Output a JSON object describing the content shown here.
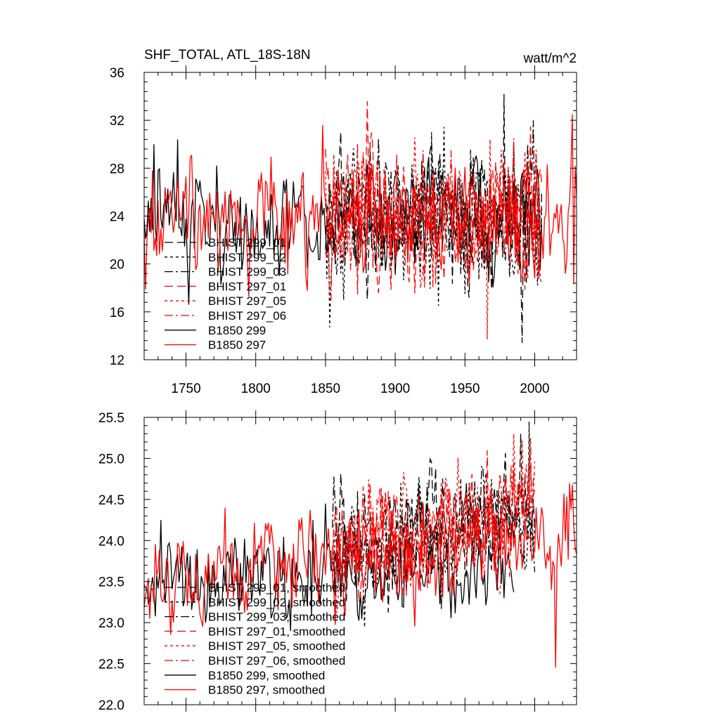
{
  "chart_data": [
    {
      "type": "line",
      "title": "SHF_TOTAL, ATL_18S-18N",
      "units": "watt/m^2",
      "xlim": [
        1720,
        2030
      ],
      "ylim": [
        12,
        36
      ],
      "x_ticks": [
        1750,
        1800,
        1850,
        1900,
        1950,
        2000
      ],
      "y_ticks": [
        12,
        16,
        20,
        24,
        28,
        32,
        36
      ],
      "legend": [
        "BHIST 299_01",
        "BHIST 299_02",
        "BHIST 299_03",
        "BHIST 297_01",
        "BHIST 297_05",
        "BHIST 297_06",
        "B1850 299",
        "B1850 297"
      ],
      "series": [
        {
          "name": "BHIST 299_01",
          "color": "#000000",
          "dash": "long",
          "x": [
            1850,
            2005
          ],
          "mean": 23.8,
          "amp": 4.0,
          "trend": 0.0,
          "spikes": [
            [
              1861,
              31.0
            ],
            [
              1978,
              34.2
            ],
            [
              1991,
              13.4
            ]
          ]
        },
        {
          "name": "BHIST 299_02",
          "color": "#000000",
          "dash": "short",
          "x": [
            1850,
            2005
          ],
          "mean": 23.8,
          "amp": 4.0,
          "trend": 0.0,
          "spikes": [
            [
              1853,
              14.7
            ],
            [
              1926,
              31.0
            ],
            [
              1931,
              16.5
            ]
          ]
        },
        {
          "name": "BHIST 299_03",
          "color": "#000000",
          "dash": "dashdot",
          "x": [
            1850,
            2005
          ],
          "mean": 23.8,
          "amp": 4.0,
          "trend": 0.0,
          "spikes": [
            [
              1888,
              30.5
            ],
            [
              1999,
              32.0
            ]
          ]
        },
        {
          "name": "BHIST 297_01",
          "color": "#ff0000",
          "dash": "long",
          "x": [
            1850,
            2005
          ],
          "mean": 24.0,
          "amp": 3.8,
          "trend": 0.0,
          "spikes": [
            [
              1880,
              33.6
            ],
            [
              1997,
              31.5
            ]
          ]
        },
        {
          "name": "BHIST 297_05",
          "color": "#ff0000",
          "dash": "short",
          "x": [
            1850,
            2005
          ],
          "mean": 24.0,
          "amp": 3.8,
          "trend": 0.0,
          "spikes": [
            [
              1966,
              13.7
            ],
            [
              1968,
              30.4
            ]
          ]
        },
        {
          "name": "BHIST 297_06",
          "color": "#ff0000",
          "dash": "dashdot",
          "x": [
            1850,
            2005
          ],
          "mean": 24.0,
          "amp": 3.8,
          "trend": 0.0,
          "spikes": [
            [
              1940,
              29.5
            ],
            [
              1985,
              30.5
            ]
          ]
        },
        {
          "name": "B1850 299",
          "color": "#000000",
          "dash": "solid",
          "x": [
            1720,
            2005
          ],
          "mean": 23.7,
          "amp": 3.2,
          "trend": 0.0,
          "spikes": [
            [
              1727,
              30.0
            ],
            [
              1744,
              30.4
            ],
            [
              1752,
              16.6
            ]
          ]
        },
        {
          "name": "B1850 297",
          "color": "#ff0000",
          "dash": "solid",
          "x": [
            1720,
            2030
          ],
          "mean": 23.9,
          "amp": 3.3,
          "trend": 0.0,
          "spikes": [
            [
              1726,
              27.8
            ],
            [
              1848,
              31.6
            ],
            [
              2027,
              32.5
            ],
            [
              2028,
              18.3
            ]
          ]
        }
      ]
    },
    {
      "type": "line",
      "title": "",
      "xlim": [
        1720,
        2030
      ],
      "ylim": [
        22.0,
        25.5
      ],
      "y_ticks": [
        22.0,
        22.5,
        23.0,
        23.5,
        24.0,
        24.5,
        25.0,
        25.5
      ],
      "legend": [
        "BHIST 299_01, smoothed",
        "BHIST 299_02, smoothed",
        "BHIST 299_03, smoothed",
        "BHIST 297_01, smoothed",
        "BHIST 297_05, smoothed",
        "BHIST 297_06, smoothed",
        "B1850 299, smoothed",
        "B1850 297, smoothed"
      ],
      "series": [
        {
          "name": "BHIST 299_01, smoothed",
          "color": "#000000",
          "dash": "long",
          "x": [
            1855,
            2000
          ],
          "mean": 23.85,
          "amp": 0.42,
          "trend": 0.0035,
          "spikes": [
            [
              1873,
              24.6
            ],
            [
              1990,
              25.3
            ]
          ]
        },
        {
          "name": "BHIST 299_02, smoothed",
          "color": "#000000",
          "dash": "short",
          "x": [
            1855,
            2000
          ],
          "mean": 23.85,
          "amp": 0.42,
          "trend": 0.0035,
          "spikes": [
            [
              1904,
              24.7
            ],
            [
              1996,
              25.45
            ]
          ]
        },
        {
          "name": "BHIST 299_03, smoothed",
          "color": "#000000",
          "dash": "dashdot",
          "x": [
            1855,
            2000
          ],
          "mean": 23.85,
          "amp": 0.42,
          "trend": 0.0035,
          "spikes": [
            [
              1923,
              24.7
            ]
          ]
        },
        {
          "name": "BHIST 297_01, smoothed",
          "color": "#ff0000",
          "dash": "long",
          "x": [
            1855,
            2000
          ],
          "mean": 23.9,
          "amp": 0.42,
          "trend": 0.0035,
          "spikes": [
            [
              1895,
              24.6
            ],
            [
              1966,
              25.1
            ]
          ]
        },
        {
          "name": "BHIST 297_05, smoothed",
          "color": "#ff0000",
          "dash": "short",
          "x": [
            1855,
            2000
          ],
          "mean": 23.9,
          "amp": 0.42,
          "trend": 0.0035,
          "spikes": [
            [
              1985,
              25.3
            ]
          ]
        },
        {
          "name": "BHIST 297_06, smoothed",
          "color": "#ff0000",
          "dash": "dashdot",
          "x": [
            1855,
            2000
          ],
          "mean": 23.9,
          "amp": 0.42,
          "trend": 0.0035,
          "spikes": [
            [
              1997,
              25.25
            ]
          ]
        },
        {
          "name": "B1850 299, smoothed",
          "color": "#000000",
          "dash": "solid",
          "x": [
            1720,
            1985
          ],
          "mean": 23.55,
          "amp": 0.38,
          "trend": 0.0,
          "spikes": [
            [
              1732,
              24.25
            ],
            [
              1841,
              24.25
            ],
            [
              1850,
              24.45
            ]
          ]
        },
        {
          "name": "B1850 297, smoothed",
          "color": "#ff0000",
          "dash": "solid",
          "x": [
            1720,
            2030
          ],
          "mean": 23.5,
          "amp": 0.45,
          "trend": 0.0015,
          "spikes": [
            [
              1778,
              24.4
            ],
            [
              2015,
              22.45
            ],
            [
              2025,
              24.7
            ]
          ]
        }
      ]
    }
  ]
}
